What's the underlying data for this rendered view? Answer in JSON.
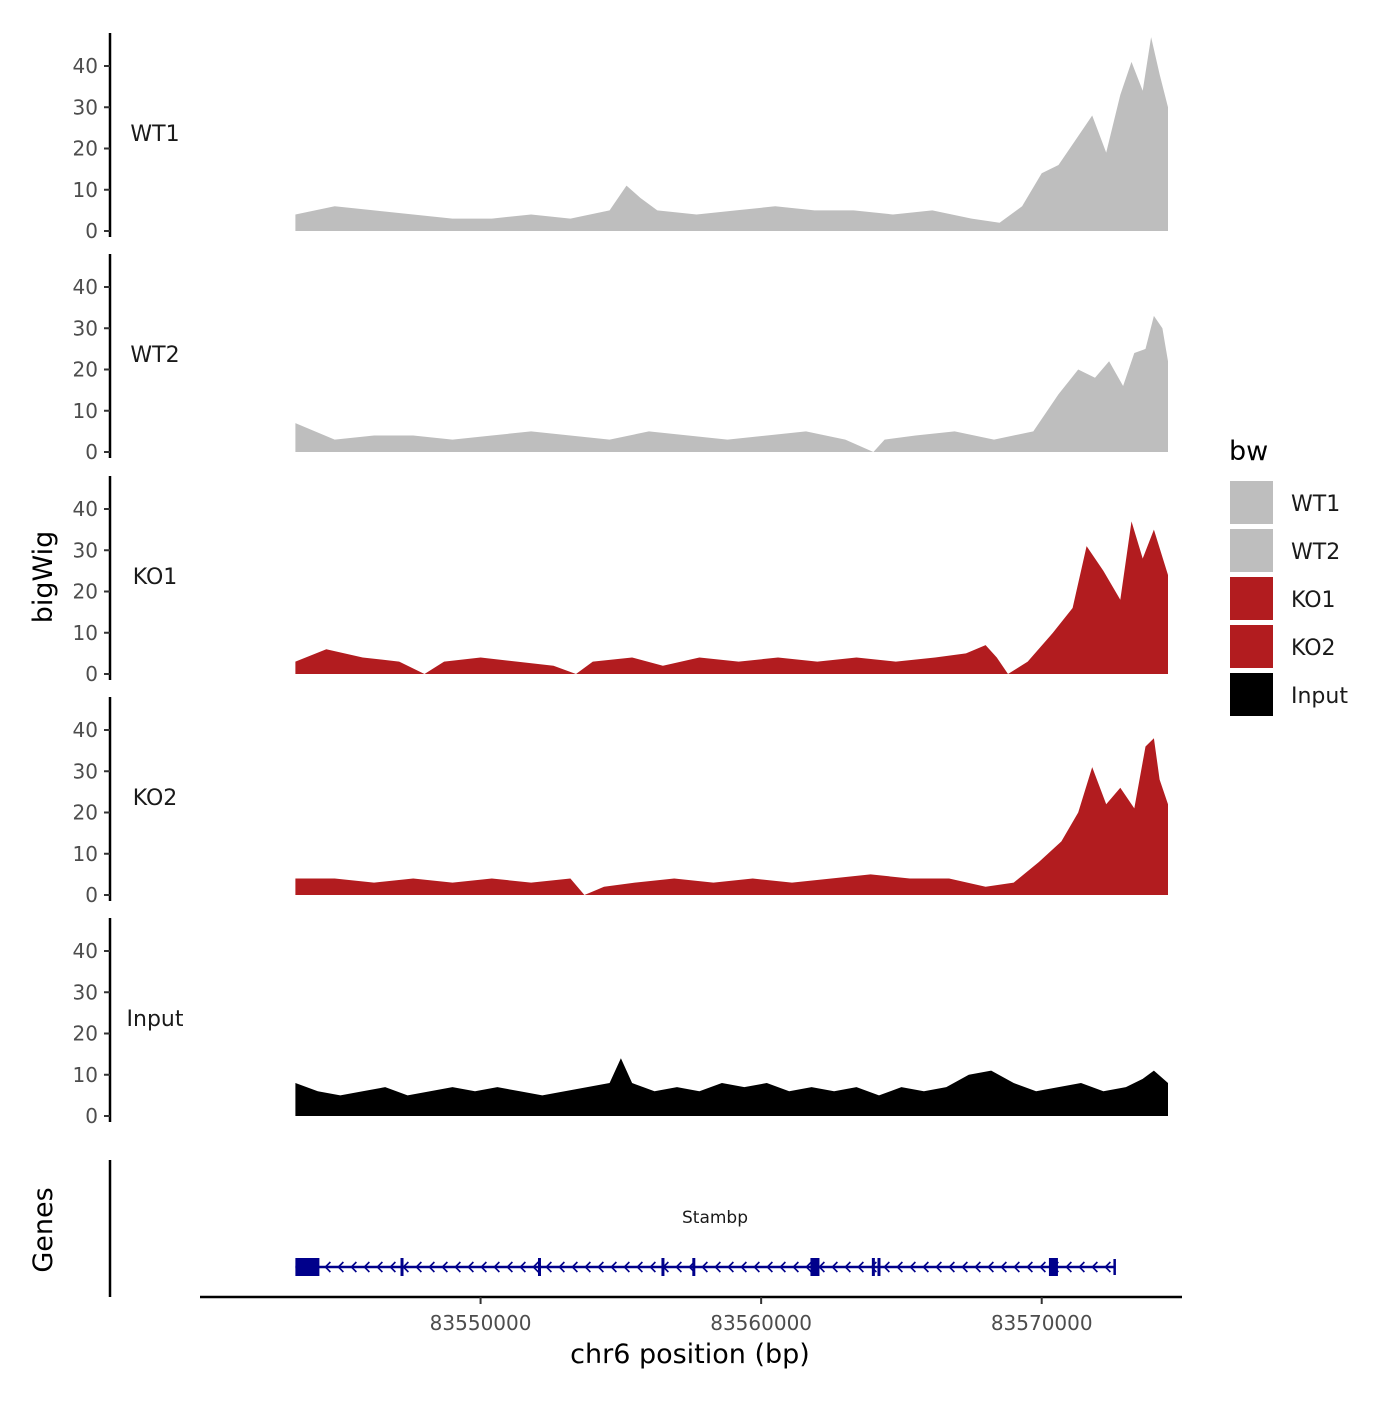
{
  "chart_data": {
    "type": "area",
    "title": "",
    "ylabel": "bigWig",
    "xlabel": "chr6 position (bp)",
    "genes_label": "Genes",
    "xlim": [
      83540000,
      83575000
    ],
    "region": [
      83543400,
      83574500
    ],
    "ylim": [
      0,
      48
    ],
    "y_ticks": [
      0,
      10,
      20,
      30,
      40
    ],
    "x_ticks": [
      83550000,
      83560000,
      83570000
    ],
    "x_tick_labels": [
      "83550000",
      "83560000",
      "83570000"
    ],
    "legend": {
      "title": "bw",
      "position": "right",
      "entries": [
        {
          "label": "WT1",
          "color": "#bebebe"
        },
        {
          "label": "WT2",
          "color": "#bebebe"
        },
        {
          "label": "KO1",
          "color": "#b21c1f"
        },
        {
          "label": "KO2",
          "color": "#b21c1f"
        },
        {
          "label": "Input",
          "color": "#000000"
        }
      ]
    },
    "series": [
      {
        "name": "WT1",
        "color": "#bebebe",
        "x": [
          83543400,
          83544800,
          83546200,
          83547600,
          83549000,
          83550400,
          83551800,
          83553200,
          83554600,
          83555200,
          83555700,
          83556300,
          83557700,
          83559100,
          83560500,
          83561900,
          83563300,
          83564700,
          83566100,
          83567500,
          83568500,
          83569300,
          83570000,
          83570600,
          83571200,
          83571800,
          83572300,
          83572800,
          83573200,
          83573600,
          83573900,
          83574200,
          83574500
        ],
        "values": [
          4,
          6,
          5,
          4,
          3,
          3,
          4,
          3,
          5,
          11,
          8,
          5,
          4,
          5,
          6,
          5,
          5,
          4,
          5,
          3,
          2,
          6,
          14,
          16,
          22,
          28,
          19,
          33,
          41,
          34,
          47,
          38,
          30
        ]
      },
      {
        "name": "WT2",
        "color": "#bebebe",
        "x": [
          83543400,
          83544800,
          83546200,
          83547600,
          83549000,
          83550400,
          83551800,
          83553200,
          83554600,
          83556000,
          83557400,
          83558800,
          83560200,
          83561600,
          83563000,
          83564000,
          83564400,
          83565500,
          83566900,
          83568300,
          83569700,
          83570600,
          83571300,
          83571900,
          83572400,
          83572900,
          83573300,
          83573700,
          83574000,
          83574300,
          83574500
        ],
        "values": [
          7,
          3,
          4,
          4,
          3,
          4,
          5,
          4,
          3,
          5,
          4,
          3,
          4,
          5,
          3,
          0,
          3,
          4,
          5,
          3,
          5,
          14,
          20,
          18,
          22,
          16,
          24,
          25,
          33,
          30,
          22
        ]
      },
      {
        "name": "KO1",
        "color": "#b21c1f",
        "x": [
          83543400,
          83544500,
          83545800,
          83547100,
          83548000,
          83548700,
          83550000,
          83551300,
          83552600,
          83553400,
          83554000,
          83555400,
          83556500,
          83557800,
          83559200,
          83560600,
          83562000,
          83563400,
          83564800,
          83566200,
          83567300,
          83568000,
          83568400,
          83568800,
          83569500,
          83570400,
          83571100,
          83571600,
          83572200,
          83572800,
          83573200,
          83573600,
          83574000,
          83574500
        ],
        "values": [
          3,
          6,
          4,
          3,
          0,
          3,
          4,
          3,
          2,
          0,
          3,
          4,
          2,
          4,
          3,
          4,
          3,
          4,
          3,
          4,
          5,
          7,
          4,
          0,
          3,
          10,
          16,
          31,
          25,
          18,
          37,
          28,
          35,
          24
        ]
      },
      {
        "name": "KO2",
        "color": "#b21c1f",
        "x": [
          83543400,
          83544800,
          83546200,
          83547600,
          83549000,
          83550400,
          83551800,
          83553200,
          83553700,
          83554400,
          83555500,
          83556900,
          83558300,
          83559700,
          83561100,
          83562500,
          83563900,
          83565300,
          83566700,
          83568000,
          83569000,
          83569900,
          83570700,
          83571300,
          83571800,
          83572300,
          83572800,
          83573300,
          83573700,
          83574000,
          83574200,
          83574500
        ],
        "values": [
          4,
          4,
          3,
          4,
          3,
          4,
          3,
          4,
          0,
          2,
          3,
          4,
          3,
          4,
          3,
          4,
          5,
          4,
          4,
          2,
          3,
          8,
          13,
          20,
          31,
          22,
          26,
          21,
          36,
          38,
          28,
          22
        ]
      },
      {
        "name": "Input",
        "color": "#000000",
        "x": [
          83543400,
          83544200,
          83545000,
          83545800,
          83546600,
          83547400,
          83548200,
          83549000,
          83549800,
          83550600,
          83551400,
          83552200,
          83553000,
          83553800,
          83554600,
          83555000,
          83555400,
          83556200,
          83557000,
          83557800,
          83558600,
          83559400,
          83560200,
          83561000,
          83561800,
          83562600,
          83563400,
          83564200,
          83565000,
          83565800,
          83566600,
          83567400,
          83568200,
          83569000,
          83569800,
          83570600,
          83571400,
          83572200,
          83573000,
          83573600,
          83574000,
          83574500
        ],
        "values": [
          8,
          6,
          5,
          6,
          7,
          5,
          6,
          7,
          6,
          7,
          6,
          5,
          6,
          7,
          8,
          14,
          8,
          6,
          7,
          6,
          8,
          7,
          8,
          6,
          7,
          6,
          7,
          5,
          7,
          6,
          7,
          10,
          11,
          8,
          6,
          7,
          8,
          6,
          7,
          9,
          11,
          8
        ]
      }
    ],
    "gene": {
      "name": "Stambp",
      "strand": "-",
      "start": 83543400,
      "end": 83572600,
      "exon_positions": [
        83543700,
        83547200,
        83552100,
        83556500,
        83557600,
        83561900,
        83564000,
        83564200,
        83570400
      ]
    }
  }
}
